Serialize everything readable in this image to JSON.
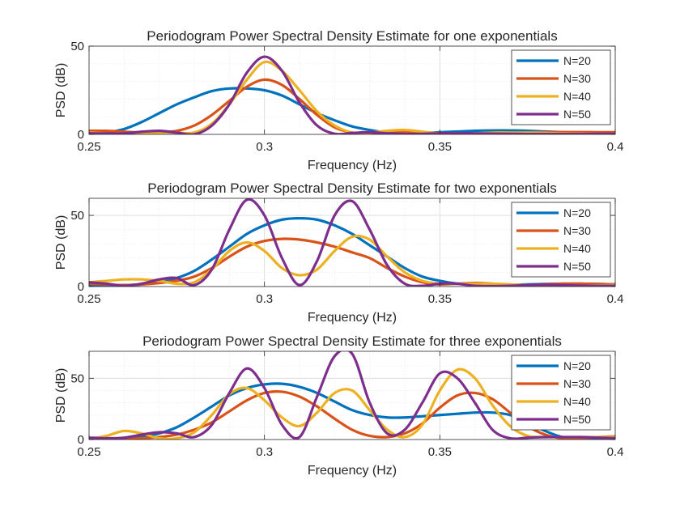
{
  "chart_data": [
    {
      "type": "line",
      "title": "Periodogram Power Spectral Density Estimate for one exponentials",
      "xlabel": "Frequency (Hz)",
      "ylabel": "PSD (dB)",
      "xlim": [
        0.25,
        0.4
      ],
      "ylim": [
        0,
        50
      ],
      "xticks": [
        0.25,
        0.3,
        0.35,
        0.4
      ],
      "xtick_labels": [
        "0.25",
        "0.3",
        "0.35",
        "0.4"
      ],
      "yticks": [
        0,
        50
      ],
      "ytick_labels": [
        "0",
        "50"
      ],
      "grid": true,
      "legend_position": "top-right",
      "x": [
        0.25,
        0.255,
        0.26,
        0.265,
        0.27,
        0.275,
        0.28,
        0.285,
        0.29,
        0.295,
        0.3,
        0.305,
        0.31,
        0.315,
        0.32,
        0.325,
        0.33,
        0.335,
        0.34,
        0.345,
        0.35,
        0.355,
        0.36,
        0.365,
        0.37,
        0.375,
        0.38,
        0.385,
        0.39,
        0.395,
        0.4
      ],
      "series": [
        {
          "name": "N=20",
          "color": "#0072BD",
          "values": [
            0,
            1,
            3,
            7,
            12,
            17,
            21,
            24.5,
            26,
            26,
            25,
            22,
            17,
            12,
            8,
            4.5,
            2.5,
            1,
            0.5,
            0.8,
            1.2,
            1.6,
            2,
            2.2,
            2.2,
            2,
            1.6,
            1.2,
            0.9,
            0.6,
            0.5
          ]
        },
        {
          "name": "N=30",
          "color": "#D95319",
          "values": [
            2,
            2,
            1.5,
            1,
            1.2,
            2,
            5,
            11,
            19,
            27,
            31,
            28,
            20,
            11,
            4,
            1,
            0.5,
            1,
            1.2,
            1,
            0.7,
            0.5,
            0.4,
            0.6,
            0.8,
            1,
            1.2,
            1.3,
            1.3,
            1.2,
            1.2
          ]
        },
        {
          "name": "N=40",
          "color": "#EDB120",
          "values": [
            1,
            0.5,
            0,
            0.3,
            1,
            1,
            1,
            6,
            17,
            31,
            41,
            36,
            25,
            13,
            5,
            1,
            1,
            2,
            2.5,
            1.5,
            0.5,
            0.3,
            0.5,
            1,
            1,
            1,
            0.8,
            0.5,
            0.4,
            0.3,
            0.2
          ]
        },
        {
          "name": "N=50",
          "color": "#7E2F8E",
          "values": [
            0.5,
            0.5,
            0.5,
            1.5,
            2,
            1,
            0,
            5,
            17,
            35,
            44,
            36,
            18,
            5,
            0.3,
            0.8,
            1.2,
            0.6,
            0.2,
            0.3,
            0.6,
            0.6,
            0.5,
            0.4,
            0.3,
            0.2,
            0.2,
            0.2,
            0.2,
            0.3,
            0.3
          ]
        }
      ]
    },
    {
      "type": "line",
      "title": "Periodogram Power Spectral Density Estimate for two exponentials",
      "xlabel": "Frequency (Hz)",
      "ylabel": "PSD (dB)",
      "xlim": [
        0.25,
        0.4
      ],
      "ylim": [
        0,
        62
      ],
      "xticks": [
        0.25,
        0.3,
        0.35,
        0.4
      ],
      "xtick_labels": [
        "0.25",
        "0.3",
        "0.35",
        "0.4"
      ],
      "yticks": [
        0,
        50
      ],
      "ytick_labels": [
        "0",
        "50"
      ],
      "grid": true,
      "legend_position": "top-right",
      "x": [
        0.25,
        0.255,
        0.26,
        0.265,
        0.27,
        0.275,
        0.28,
        0.285,
        0.29,
        0.295,
        0.3,
        0.305,
        0.31,
        0.315,
        0.32,
        0.325,
        0.33,
        0.335,
        0.34,
        0.345,
        0.35,
        0.355,
        0.36,
        0.365,
        0.37,
        0.375,
        0.38,
        0.385,
        0.39,
        0.395,
        0.4
      ],
      "series": [
        {
          "name": "N=20",
          "color": "#0072BD",
          "values": [
            1,
            1,
            1,
            1.5,
            3,
            6,
            11,
            19,
            28,
            37,
            43,
            47,
            48,
            47,
            43,
            37,
            29,
            21,
            13,
            7,
            4,
            2,
            1,
            1,
            1.2,
            1.5,
            1.8,
            2,
            2,
            1.8,
            1.5
          ]
        },
        {
          "name": "N=30",
          "color": "#D95319",
          "values": [
            2,
            1.5,
            1,
            1.5,
            2.5,
            4,
            7,
            13,
            21,
            28,
            32,
            33.5,
            33,
            31,
            28,
            24,
            20,
            13,
            7,
            3,
            1.5,
            2,
            2.5,
            2,
            1.2,
            1,
            1.5,
            2,
            2,
            1.8,
            1.5
          ]
        },
        {
          "name": "N=40",
          "color": "#EDB120",
          "values": [
            3,
            4,
            5,
            5,
            4,
            2,
            3,
            12,
            25,
            31,
            25,
            13,
            8,
            12,
            25,
            35,
            33,
            21,
            10,
            4,
            2,
            2,
            2,
            2,
            1.5,
            1,
            0.8,
            0.5,
            0.5,
            0.8,
            1
          ]
        },
        {
          "name": "N=50",
          "color": "#7E2F8E",
          "values": [
            3,
            2,
            0.5,
            2,
            5,
            6,
            1,
            12,
            40,
            61,
            50,
            20,
            1,
            18,
            50,
            60,
            40,
            15,
            2,
            0.5,
            2,
            2,
            0.5,
            0.3,
            0.5,
            1,
            1.2,
            1,
            0.6,
            0.5,
            0.5
          ]
        }
      ]
    },
    {
      "type": "line",
      "title": "Periodogram Power Spectral Density Estimate for three exponentials",
      "xlabel": "Frequency (Hz)",
      "ylabel": "PSD (dB)",
      "xlim": [
        0.25,
        0.4
      ],
      "ylim": [
        0,
        72
      ],
      "xticks": [
        0.25,
        0.3,
        0.35,
        0.4
      ],
      "xtick_labels": [
        "0.25",
        "0.3",
        "0.35",
        "0.4"
      ],
      "yticks": [
        0,
        50
      ],
      "ytick_labels": [
        "0",
        "50"
      ],
      "grid": true,
      "legend_position": "top-right",
      "x": [
        0.25,
        0.255,
        0.26,
        0.265,
        0.27,
        0.275,
        0.28,
        0.285,
        0.29,
        0.295,
        0.3,
        0.305,
        0.31,
        0.315,
        0.32,
        0.325,
        0.33,
        0.335,
        0.34,
        0.345,
        0.35,
        0.355,
        0.36,
        0.365,
        0.37,
        0.375,
        0.38,
        0.385,
        0.39,
        0.395,
        0.4
      ],
      "series": [
        {
          "name": "N=20",
          "color": "#0072BD",
          "values": [
            0.5,
            0.5,
            1,
            2,
            5,
            10,
            18,
            27,
            36,
            42,
            45,
            45.5,
            43,
            38,
            31,
            24,
            20,
            18,
            18,
            19,
            20,
            21,
            22,
            22,
            20,
            14,
            7,
            2,
            1,
            0.5,
            0.5
          ]
        },
        {
          "name": "N=30",
          "color": "#D95319",
          "values": [
            1,
            1,
            0.5,
            1,
            2,
            4,
            8,
            14,
            23,
            32,
            38,
            39,
            35,
            27,
            17,
            8,
            3,
            2,
            5,
            13,
            26,
            36,
            38,
            33,
            22,
            11,
            4,
            1,
            1,
            2,
            2.5
          ]
        },
        {
          "name": "N=40",
          "color": "#EDB120",
          "values": [
            0.5,
            3,
            7,
            5,
            1,
            1,
            6,
            20,
            37,
            42,
            32,
            18,
            11,
            22,
            38,
            40,
            24,
            8,
            2,
            12,
            40,
            57,
            50,
            28,
            11,
            3,
            2,
            2,
            2,
            2,
            2
          ]
        },
        {
          "name": "N=50",
          "color": "#7E2F8E",
          "values": [
            1.5,
            1,
            1.5,
            4,
            6,
            5,
            2,
            12,
            38,
            58,
            42,
            12,
            2,
            35,
            68,
            70,
            30,
            5,
            8,
            30,
            54,
            50,
            30,
            8,
            1,
            1.5,
            2,
            2,
            2,
            1.5,
            1
          ]
        }
      ]
    }
  ]
}
